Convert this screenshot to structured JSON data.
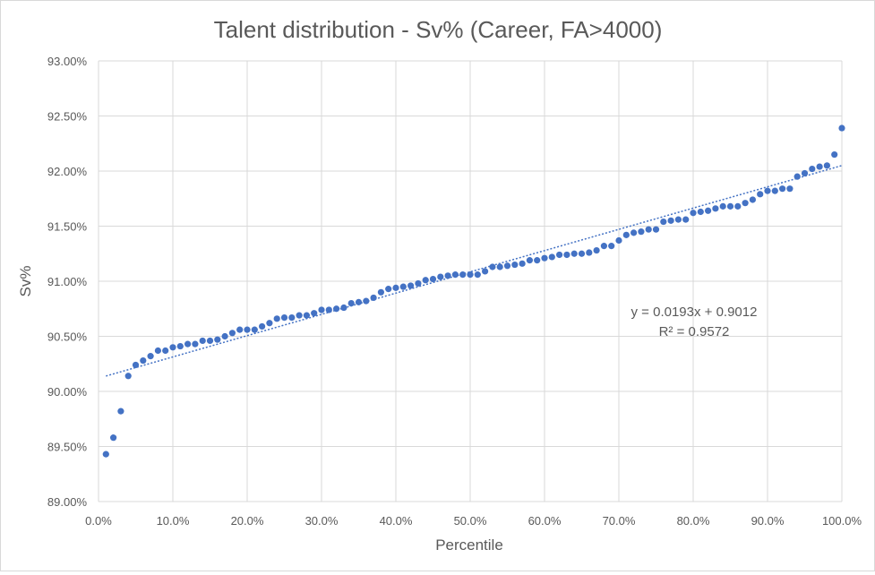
{
  "chart_data": {
    "type": "scatter",
    "title": "Talent distribution - Sv% (Career, FA>4000)",
    "xlabel": "Percentile",
    "ylabel": "Sv%",
    "xlim": [
      0,
      1
    ],
    "ylim": [
      0.89,
      0.93
    ],
    "x_ticks": [
      "0.0%",
      "10.0%",
      "20.0%",
      "30.0%",
      "40.0%",
      "50.0%",
      "60.0%",
      "70.0%",
      "80.0%",
      "90.0%",
      "100.0%"
    ],
    "y_ticks": [
      "89.00%",
      "89.50%",
      "90.00%",
      "90.50%",
      "91.00%",
      "91.50%",
      "92.00%",
      "92.50%",
      "93.00%"
    ],
    "grid": true,
    "legend": "none",
    "marker_color": "#4472C4",
    "series": [
      {
        "name": "Sv%",
        "x": [
          0.01,
          0.02,
          0.03,
          0.04,
          0.05,
          0.06,
          0.07,
          0.08,
          0.09,
          0.1,
          0.11,
          0.12,
          0.13,
          0.14,
          0.15,
          0.16,
          0.17,
          0.18,
          0.19,
          0.2,
          0.21,
          0.22,
          0.23,
          0.24,
          0.25,
          0.26,
          0.27,
          0.28,
          0.29,
          0.3,
          0.31,
          0.32,
          0.33,
          0.34,
          0.35,
          0.36,
          0.37,
          0.38,
          0.39,
          0.4,
          0.41,
          0.42,
          0.43,
          0.44,
          0.45,
          0.46,
          0.47,
          0.48,
          0.49,
          0.5,
          0.51,
          0.52,
          0.53,
          0.54,
          0.55,
          0.56,
          0.57,
          0.58,
          0.59,
          0.6,
          0.61,
          0.62,
          0.63,
          0.64,
          0.65,
          0.66,
          0.67,
          0.68,
          0.69,
          0.7,
          0.71,
          0.72,
          0.73,
          0.74,
          0.75,
          0.76,
          0.77,
          0.78,
          0.79,
          0.8,
          0.81,
          0.82,
          0.83,
          0.84,
          0.85,
          0.86,
          0.87,
          0.88,
          0.89,
          0.9,
          0.91,
          0.92,
          0.93,
          0.94,
          0.95,
          0.96,
          0.97,
          0.98,
          0.99,
          1.0
        ],
        "y": [
          0.8943,
          0.8958,
          0.8982,
          0.9014,
          0.9024,
          0.9028,
          0.9032,
          0.9037,
          0.9037,
          0.904,
          0.9041,
          0.9043,
          0.9043,
          0.9046,
          0.9046,
          0.9047,
          0.905,
          0.9053,
          0.9056,
          0.9056,
          0.9056,
          0.9059,
          0.9062,
          0.9066,
          0.9067,
          0.9067,
          0.9069,
          0.9069,
          0.9071,
          0.9074,
          0.9074,
          0.9075,
          0.9076,
          0.908,
          0.9081,
          0.9082,
          0.9085,
          0.909,
          0.9093,
          0.9094,
          0.9095,
          0.9096,
          0.9098,
          0.9101,
          0.9102,
          0.9104,
          0.9105,
          0.9106,
          0.9106,
          0.9106,
          0.9106,
          0.9109,
          0.9113,
          0.9113,
          0.9114,
          0.9115,
          0.9116,
          0.9119,
          0.9119,
          0.9121,
          0.9122,
          0.9124,
          0.9124,
          0.9125,
          0.9125,
          0.9126,
          0.9128,
          0.9132,
          0.9132,
          0.9137,
          0.9142,
          0.9144,
          0.9145,
          0.9147,
          0.9147,
          0.9154,
          0.9155,
          0.9156,
          0.9156,
          0.9162,
          0.9163,
          0.9164,
          0.9166,
          0.9168,
          0.9168,
          0.9168,
          0.9171,
          0.9174,
          0.9179,
          0.9182,
          0.9182,
          0.9184,
          0.9184,
          0.9195,
          0.9198,
          0.9202,
          0.9204,
          0.9205,
          0.9215,
          0.9239
        ]
      }
    ],
    "trendline": {
      "type": "linear",
      "slope": 0.0193,
      "intercept": 0.9012,
      "equation_label": "y = 0.0193x + 0.9012",
      "r2_label": "R² = 0.9572"
    }
  }
}
